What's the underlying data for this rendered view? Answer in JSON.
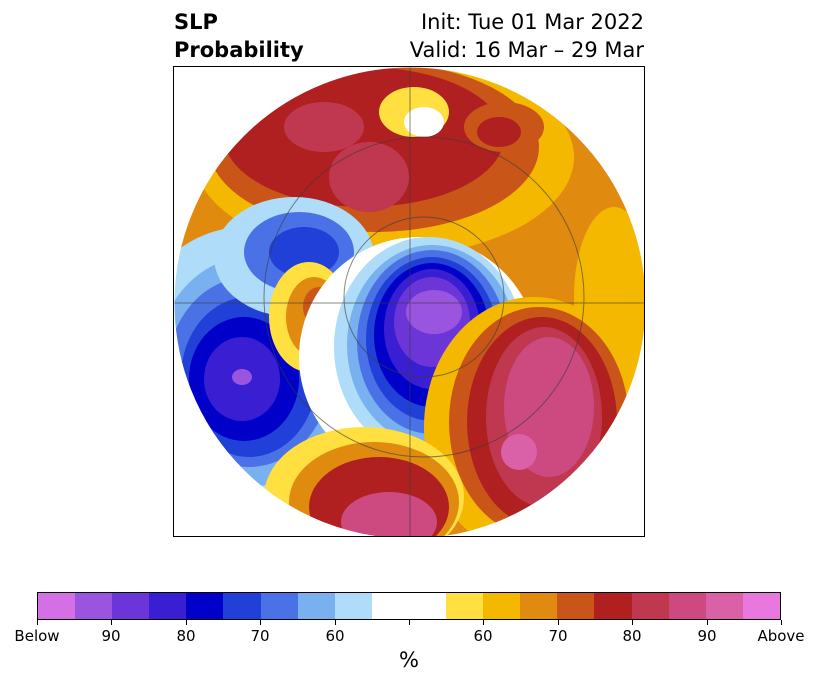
{
  "title": {
    "left_line1": "SLP",
    "left_line2": "Probability",
    "right_line1": "Init: Tue 01 Mar 2022",
    "right_line2": "Valid: 16 Mar – 29 Mar"
  },
  "colorbar": {
    "colors": [
      "#d46fe6",
      "#9a55e0",
      "#6b35d8",
      "#3a1ed2",
      "#0000c8",
      "#2040d8",
      "#4a72e6",
      "#78b0f0",
      "#aedcf9",
      "#ffffff",
      "#ffffff",
      "#ffe040",
      "#f5b800",
      "#e08a10",
      "#c95518",
      "#b02020",
      "#c03850",
      "#cc4a80",
      "#da60a8",
      "#e878de"
    ],
    "tick_labels": [
      "Below",
      "90",
      "80",
      "70",
      "60",
      "",
      "60",
      "70",
      "80",
      "90",
      "Above"
    ],
    "units": "%"
  }
}
